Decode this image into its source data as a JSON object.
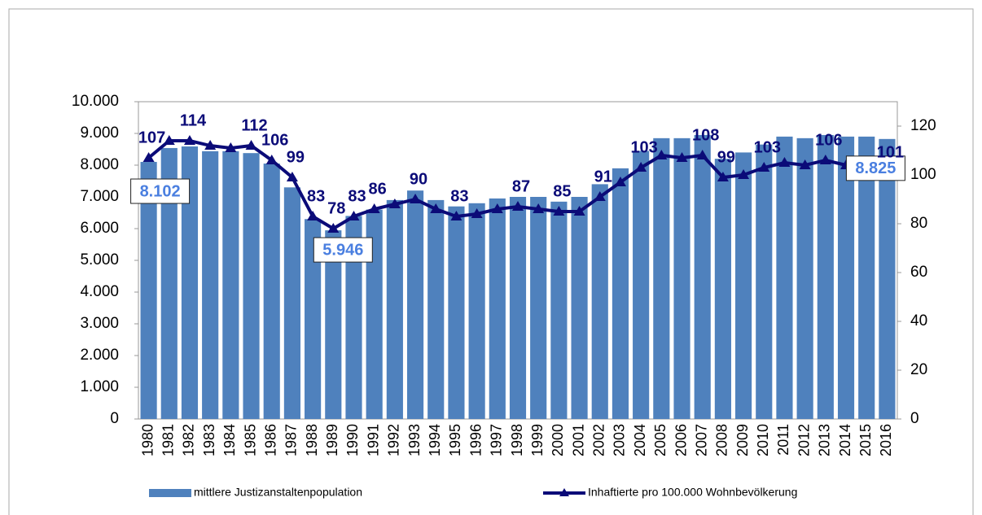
{
  "chart_data": {
    "type": "bar+line",
    "categories": [
      "1980",
      "1981",
      "1982",
      "1983",
      "1984",
      "1985",
      "1986",
      "1987",
      "1988",
      "1989",
      "1990",
      "1991",
      "1992",
      "1993",
      "1994",
      "1995",
      "1996",
      "1997",
      "1998",
      "1999",
      "2000",
      "2001",
      "2002",
      "2003",
      "2004",
      "2005",
      "2006",
      "2007",
      "2008",
      "2009",
      "2010",
      "2011",
      "2012",
      "2013",
      "2014",
      "2015",
      "2016"
    ],
    "series": [
      {
        "name": "mittlere Justizanstaltenpopulation",
        "type": "bar",
        "color": "#4f81bd",
        "values": [
          8102,
          8540,
          8590,
          8440,
          8440,
          8380,
          8050,
          7300,
          6300,
          5946,
          6400,
          6600,
          6900,
          7200,
          6900,
          6700,
          6800,
          6950,
          7000,
          7000,
          6850,
          7000,
          7400,
          7900,
          8450,
          8850,
          8850,
          8950,
          8200,
          8400,
          8650,
          8900,
          8850,
          8950,
          8900,
          8900,
          8825
        ],
        "value_labels": [
          "8.102",
          null,
          null,
          null,
          null,
          null,
          null,
          null,
          null,
          "5.946",
          null,
          null,
          null,
          null,
          null,
          null,
          null,
          null,
          null,
          null,
          null,
          null,
          null,
          null,
          null,
          null,
          null,
          null,
          null,
          null,
          null,
          null,
          null,
          null,
          null,
          null,
          "8.825"
        ]
      },
      {
        "name": "Inhaftierte pro 100.000 Wohnbevölkerung",
        "type": "line",
        "axis": "y2",
        "color": "#0b0b78",
        "values": [
          107,
          114,
          114,
          112,
          111,
          112,
          106,
          99,
          83,
          78,
          83,
          86,
          88,
          90,
          86,
          83,
          84,
          86,
          87,
          86,
          85,
          85,
          91,
          97,
          103,
          108,
          107,
          108,
          99,
          100,
          103,
          105,
          104,
          106,
          104,
          103,
          101
        ],
        "value_labels": [
          "107",
          null,
          "114",
          null,
          null,
          "112",
          "106",
          "99",
          "83",
          "78",
          "83",
          "86",
          null,
          "90",
          null,
          "83",
          null,
          null,
          "87",
          null,
          "85",
          null,
          "91",
          null,
          "103",
          null,
          null,
          "108",
          "99",
          null,
          "103",
          null,
          null,
          "106",
          null,
          null,
          "101"
        ]
      }
    ],
    "ylim": [
      0,
      10000
    ],
    "yticks": [
      0,
      {
        "value": 1000,
        "label": "1.000"
      },
      {
        "value": 2000,
        "label": "2.000"
      },
      {
        "value": 3000,
        "label": "3.000"
      },
      {
        "value": 4000,
        "label": "4.000"
      },
      {
        "value": 5000,
        "label": "5.000"
      },
      {
        "value": 6000,
        "label": "6.000"
      },
      {
        "value": 7000,
        "label": "7.000"
      },
      {
        "value": 8000,
        "label": "8.000"
      },
      {
        "value": 9000,
        "label": "9.000"
      },
      {
        "value": 10000,
        "label": "10.000"
      }
    ],
    "y2lim": [
      0,
      130
    ],
    "y2ticks": [
      0,
      20,
      40,
      60,
      80,
      100,
      120
    ],
    "grid": false,
    "legend": "bottom"
  }
}
